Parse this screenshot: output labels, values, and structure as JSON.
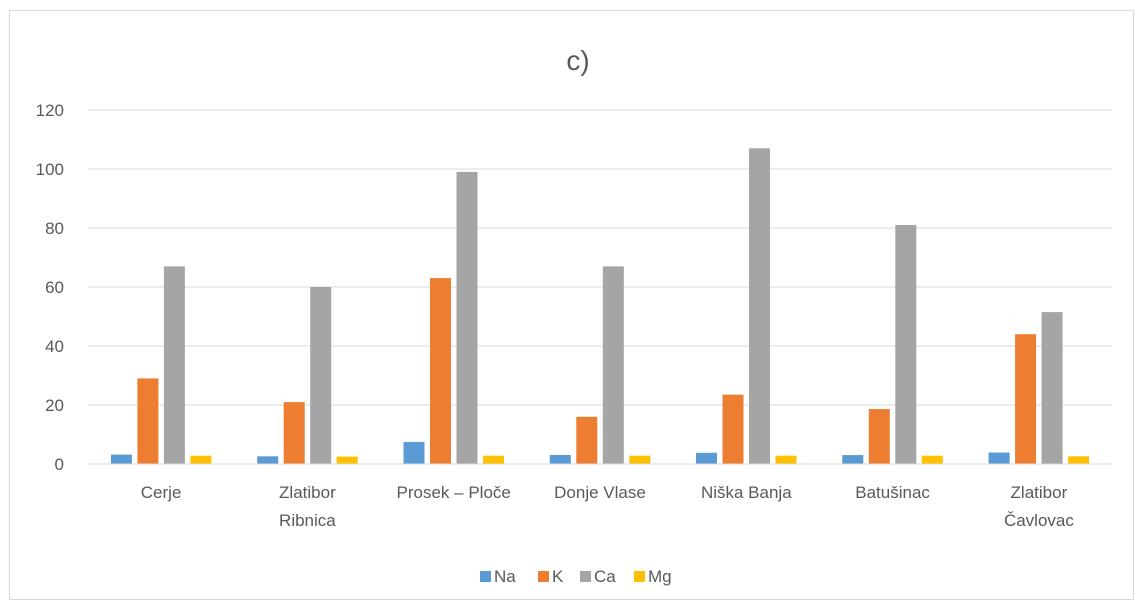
{
  "chart_data": {
    "type": "bar",
    "title": "c)",
    "xlabel": "",
    "ylabel": "",
    "ylim": [
      0,
      120
    ],
    "yticks": [
      0,
      20,
      40,
      60,
      80,
      100,
      120
    ],
    "grid": true,
    "legend_position": "bottom",
    "categories": [
      [
        "Cerje"
      ],
      [
        "Zlatibor",
        "Ribnica"
      ],
      [
        "Prosek – Ploče"
      ],
      [
        "Donje Vlase"
      ],
      [
        "Niška Banja"
      ],
      [
        "Batušinac"
      ],
      [
        "Zlatibor",
        "Čavlovac"
      ]
    ],
    "series": [
      {
        "name": "Na",
        "color": "#5b9bd5",
        "values": [
          3.2,
          2.6,
          7.5,
          3.1,
          3.8,
          3.0,
          3.9
        ]
      },
      {
        "name": "K",
        "color": "#ed7d31",
        "values": [
          29,
          21,
          63,
          16,
          23.5,
          18.6,
          44
        ]
      },
      {
        "name": "Ca",
        "color": "#a5a5a5",
        "values": [
          67,
          60,
          99,
          67,
          107,
          81,
          51.5
        ]
      },
      {
        "name": "Mg",
        "color": "#ffc000",
        "values": [
          2.8,
          2.5,
          2.8,
          2.8,
          2.8,
          2.8,
          2.6
        ]
      }
    ]
  }
}
